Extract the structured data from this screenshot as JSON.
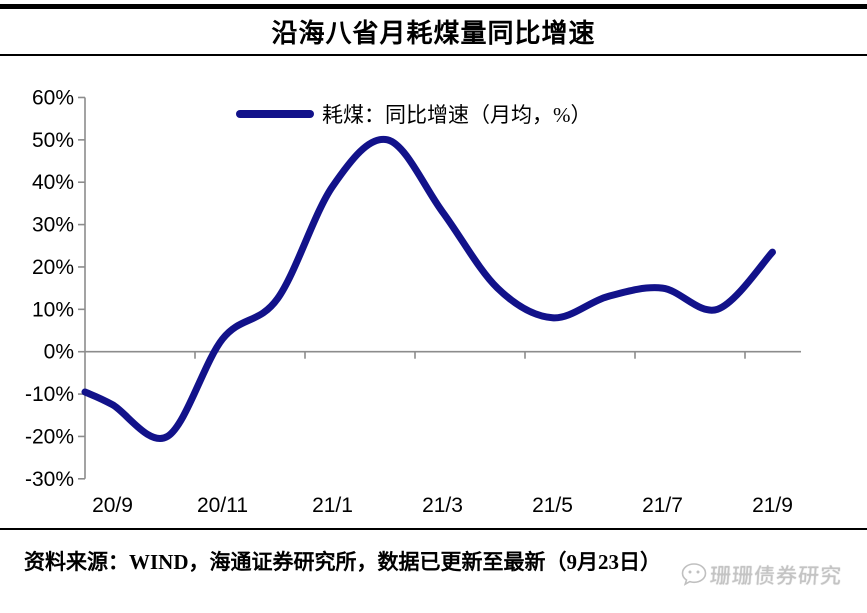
{
  "header": {
    "title": "沿海八省月耗煤量同比增速"
  },
  "chart_data": {
    "type": "line",
    "title": "沿海八省月耗煤量同比增速",
    "legend": "耗煤：同比增速（月均，%）",
    "legend_position": "top-center",
    "categories": [
      "20/9",
      "20/10",
      "20/11",
      "20/12",
      "21/1",
      "21/2",
      "21/3",
      "21/4",
      "21/5",
      "21/6",
      "21/7",
      "21/8",
      "21/9"
    ],
    "values": [
      -12.5,
      -20,
      3,
      12.5,
      39,
      50,
      33,
      15,
      8,
      13,
      15,
      10,
      23.5
    ],
    "left_edge_value": -9.5,
    "x_tick_labels": [
      "20/9",
      "20/11",
      "21/1",
      "21/3",
      "21/5",
      "21/7",
      "21/9"
    ],
    "y_ticks": [
      60,
      50,
      40,
      30,
      20,
      10,
      0,
      -10,
      -20,
      -30
    ],
    "y_tick_suffix": "%",
    "ylim": [
      -30,
      60
    ],
    "grid": "zero-line-only",
    "line_color": "#12128a",
    "axis_color": "#8c8c8c",
    "label_color": "#000000"
  },
  "footer": {
    "source": "资料来源：WIND，海通证券研究所，数据已更新至最新（9月23日）",
    "watermark": "珊珊债券研究",
    "watermark_icon": "chat-bubble-icon"
  }
}
